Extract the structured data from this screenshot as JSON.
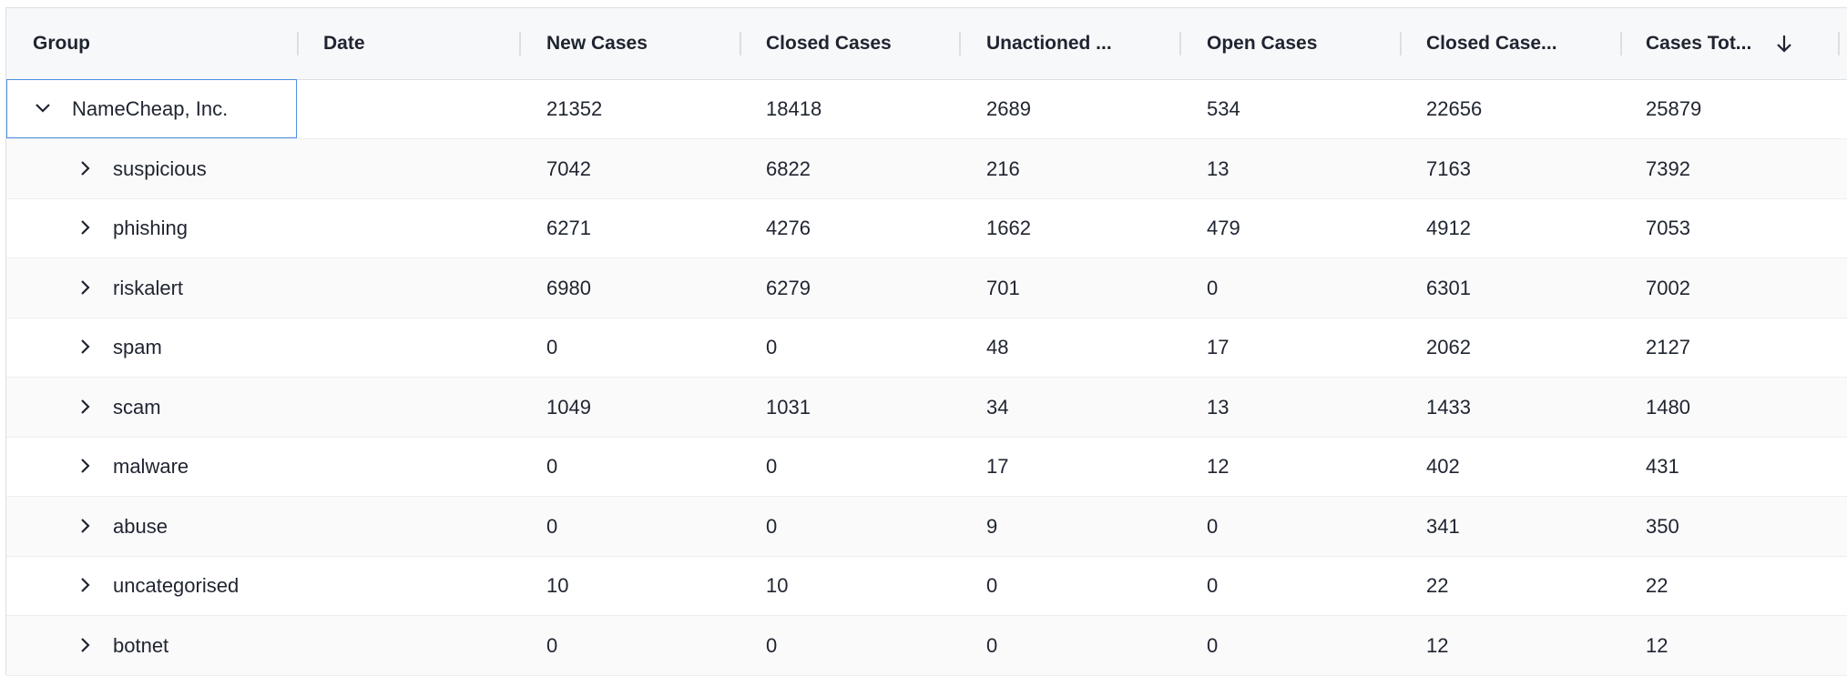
{
  "table": {
    "columns": [
      "Group",
      "Date",
      "New Cases",
      "Closed Cases",
      "Unactioned ...",
      "Open Cases",
      "Closed Case...",
      "Cases Tot..."
    ],
    "rows": [
      {
        "group": "NameCheap, Inc.",
        "values": [
          21352,
          18418,
          2689,
          534,
          22656,
          25879
        ]
      },
      {
        "group": "suspicious",
        "values": [
          7042,
          6822,
          216,
          13,
          7163,
          7392
        ]
      },
      {
        "group": "phishing",
        "values": [
          6271,
          4276,
          1662,
          479,
          4912,
          7053
        ]
      },
      {
        "group": "riskalert",
        "values": [
          6980,
          6279,
          701,
          0,
          6301,
          7002
        ]
      },
      {
        "group": "spam",
        "values": [
          0,
          0,
          48,
          17,
          2062,
          2127
        ]
      },
      {
        "group": "scam",
        "values": [
          1049,
          1031,
          34,
          13,
          1433,
          1480
        ]
      },
      {
        "group": "malware",
        "values": [
          0,
          0,
          17,
          12,
          402,
          431
        ]
      },
      {
        "group": "abuse",
        "values": [
          0,
          0,
          9,
          0,
          341,
          350
        ]
      },
      {
        "group": "uncategorised",
        "values": [
          10,
          10,
          0,
          0,
          22,
          22
        ]
      },
      {
        "group": "botnet",
        "values": [
          0,
          0,
          0,
          0,
          12,
          12
        ]
      }
    ]
  }
}
